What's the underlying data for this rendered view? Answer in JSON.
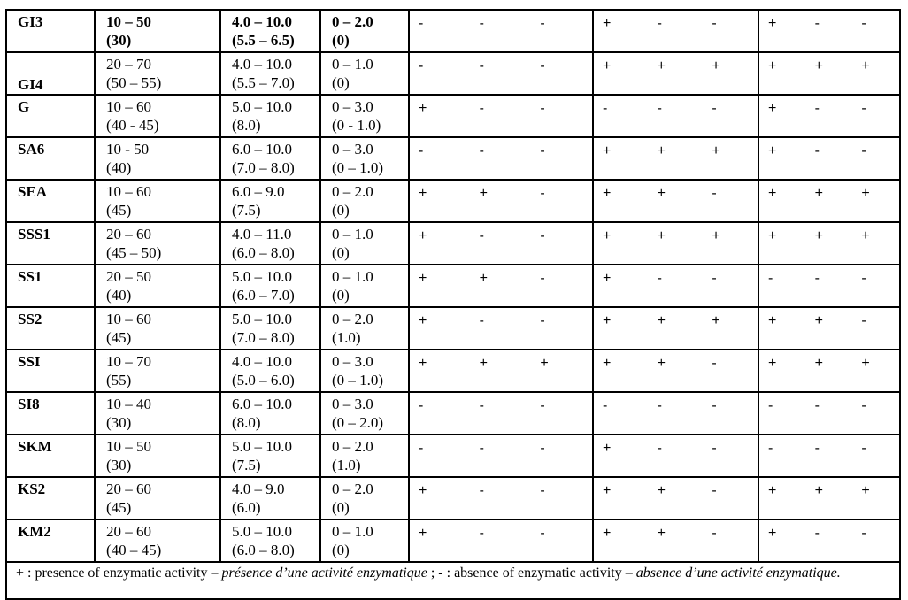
{
  "rows": [
    {
      "name": "GI3",
      "temp": "10 – 50",
      "temp_opt": "(30)",
      "ph": "4.0 – 10.0",
      "ph_opt": "(5.5 – 6.5)",
      "nacl": "0 – 2.0",
      "nacl_opt": "(0)",
      "g1": [
        "-",
        "-",
        "-"
      ],
      "g2": [
        "+",
        "-",
        "-"
      ],
      "g3": [
        "+",
        "-",
        "-"
      ],
      "bold": true
    },
    {
      "name": "GI4",
      "temp": "20 – 70",
      "temp_opt": "(50 – 55)",
      "ph": "4.0 – 10.0",
      "ph_opt": "(5.5 – 7.0)",
      "nacl": "0 – 1.0",
      "nacl_opt": "(0)",
      "g1": [
        "-",
        "-",
        "-"
      ],
      "g2": [
        "+",
        "+",
        "+"
      ],
      "g3": [
        "+",
        "+",
        "+"
      ],
      "name_bottom": true
    },
    {
      "name": "G",
      "temp": "10 – 60",
      "temp_opt": "(40 - 45)",
      "ph": "5.0 – 10.0",
      "ph_opt": "(8.0)",
      "nacl": "0 – 3.0",
      "nacl_opt": "(0 - 1.0)",
      "g1": [
        "+",
        "-",
        "-"
      ],
      "g2": [
        "-",
        "-",
        "-"
      ],
      "g3": [
        "+",
        "-",
        "-"
      ]
    },
    {
      "name": "SA6",
      "temp": "10 - 50",
      "temp_opt": "(40)",
      "ph": "6.0 – 10.0",
      "ph_opt": "(7.0 – 8.0)",
      "nacl": "0 – 3.0",
      "nacl_opt": "(0 – 1.0)",
      "g1": [
        "-",
        "-",
        "-"
      ],
      "g2": [
        "+",
        "+",
        "+"
      ],
      "g3": [
        "+",
        "-",
        "-"
      ]
    },
    {
      "name": "SEA",
      "temp": "10 – 60",
      "temp_opt": "(45)",
      "ph": "6.0 – 9.0",
      "ph_opt": "(7.5)",
      "nacl": "0 – 2.0",
      "nacl_opt": "(0)",
      "g1": [
        "+",
        "+",
        "-"
      ],
      "g2": [
        "+",
        "+",
        "-"
      ],
      "g3": [
        "+",
        "+",
        "+"
      ]
    },
    {
      "name": "SSS1",
      "temp": "20 – 60",
      "temp_opt": "(45 – 50)",
      "ph": "4.0 – 11.0",
      "ph_opt": "(6.0 – 8.0)",
      "nacl": "0 – 1.0",
      "nacl_opt": "(0)",
      "g1": [
        "+",
        "-",
        "-"
      ],
      "g2": [
        "+",
        "+",
        "+"
      ],
      "g3": [
        "+",
        "+",
        "+"
      ]
    },
    {
      "name": "SS1",
      "temp": "20 – 50",
      "temp_opt": "(40)",
      "ph": "5.0 – 10.0",
      "ph_opt": "(6.0 – 7.0)",
      "nacl": "0 – 1.0",
      "nacl_opt": "(0)",
      "g1": [
        "+",
        "+",
        "-"
      ],
      "g2": [
        "+",
        "-",
        "-"
      ],
      "g3": [
        "-",
        "-",
        "-"
      ]
    },
    {
      "name": "SS2",
      "temp": "10 – 60",
      "temp_opt": "(45)",
      "ph": "5.0 – 10.0",
      "ph_opt": "(7.0 – 8.0)",
      "nacl": "0 – 2.0",
      "nacl_opt": "(1.0)",
      "g1": [
        "+",
        "-",
        "-"
      ],
      "g2": [
        "+",
        "+",
        "+"
      ],
      "g3": [
        "+",
        "+",
        "-"
      ]
    },
    {
      "name": "SSI",
      "temp": "10 – 70",
      "temp_opt": "(55)",
      "ph": "4.0 – 10.0",
      "ph_opt": "(5.0 – 6.0)",
      "nacl": "0 – 3.0",
      "nacl_opt": "(0 – 1.0)",
      "g1": [
        "+",
        "+",
        "+"
      ],
      "g2": [
        "+",
        "+",
        "-"
      ],
      "g3": [
        "+",
        "+",
        "+"
      ]
    },
    {
      "name": "SI8",
      "temp": "10 – 40",
      "temp_opt": "(30)",
      "ph": "6.0 – 10.0",
      "ph_opt": "(8.0)",
      "nacl": "0 – 3.0",
      "nacl_opt": "(0 – 2.0)",
      "g1": [
        "-",
        "-",
        "-"
      ],
      "g2": [
        "-",
        "-",
        "-"
      ],
      "g3": [
        "-",
        "-",
        "-"
      ]
    },
    {
      "name": "SKM",
      "temp": "10 – 50",
      "temp_opt": "(30)",
      "ph": "5.0 – 10.0",
      "ph_opt": "(7.5)",
      "nacl": "0 – 2.0",
      "nacl_opt": "(1.0)",
      "g1": [
        "-",
        "-",
        "-"
      ],
      "g2": [
        "+",
        "-",
        "-"
      ],
      "g3": [
        "-",
        "-",
        "-"
      ]
    },
    {
      "name": "KS2",
      "temp": "20 – 60",
      "temp_opt": "(45)",
      "ph": "4.0 – 9.0",
      "ph_opt": "(6.0)",
      "nacl": "0 – 2.0",
      "nacl_opt": "(0)",
      "g1": [
        "+",
        "-",
        "-"
      ],
      "g2": [
        "+",
        "+",
        "-"
      ],
      "g3": [
        "+",
        "+",
        "+"
      ]
    },
    {
      "name": "KM2",
      "temp": "20 – 60",
      "temp_opt": "(40 – 45)",
      "ph": "5.0 – 10.0",
      "ph_opt": "(6.0 – 8.0)",
      "nacl": "0 – 1.0",
      "nacl_opt": "(0)",
      "g1": [
        "+",
        "-",
        "-"
      ],
      "g2": [
        "+",
        "+",
        "-"
      ],
      "g3": [
        "+",
        "-",
        "-"
      ]
    }
  ],
  "footnote": {
    "a": "+ : presence of enzymatic activity – ",
    "a_fr": "présence d’une activité enzymatique",
    "b": " ; - : absence of enzymatic activity – ",
    "b_fr": "absence d’une activité enzymatique."
  }
}
